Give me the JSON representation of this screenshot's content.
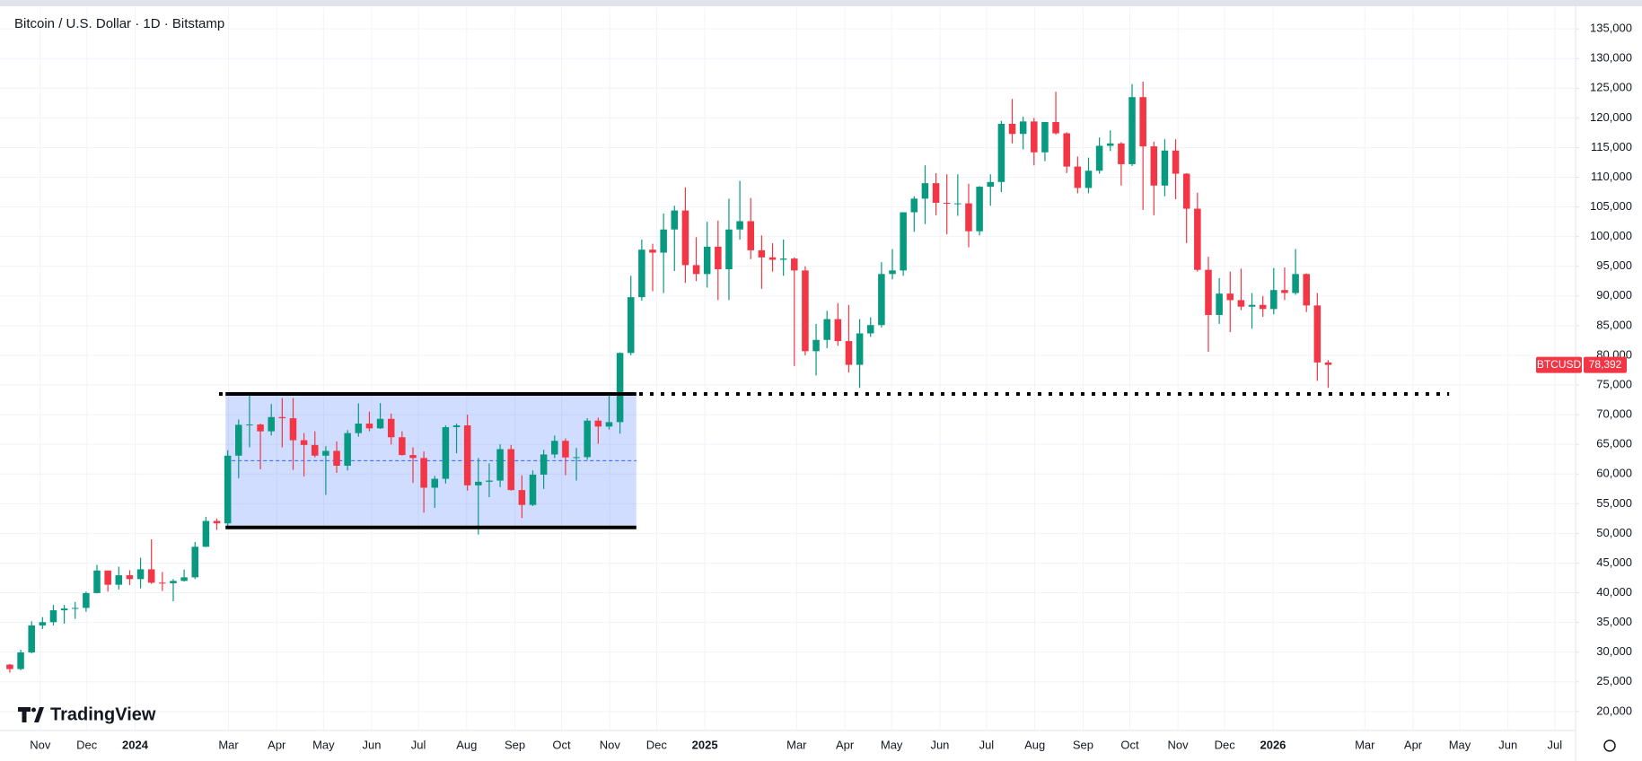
{
  "chart_data": {
    "type": "candlestick",
    "title": "Bitcoin / U.S. Dollar · 1D · Bitstamp",
    "symbol": "BTCUSD",
    "last_price": {
      "value": 78392,
      "label": "78,392"
    },
    "branding": "TradingView",
    "up_color": "#089981",
    "down_color": "#f23645",
    "grid": true,
    "xlim": [
      -0.4,
      144.2
    ],
    "ylim": [
      16800,
      138500
    ],
    "yticks": [
      {
        "value": 20000,
        "label": "20,000"
      },
      {
        "value": 25000,
        "label": "25,000"
      },
      {
        "value": 30000,
        "label": "30,000"
      },
      {
        "value": 35000,
        "label": "35,000"
      },
      {
        "value": 40000,
        "label": "40,000"
      },
      {
        "value": 45000,
        "label": "45,000"
      },
      {
        "value": 50000,
        "label": "50,000"
      },
      {
        "value": 55000,
        "label": "55,000"
      },
      {
        "value": 60000,
        "label": "60,000"
      },
      {
        "value": 65000,
        "label": "65,000"
      },
      {
        "value": 70000,
        "label": "70,000"
      },
      {
        "value": 75000,
        "label": "75,000"
      },
      {
        "value": 80000,
        "label": "80,000"
      },
      {
        "value": 85000,
        "label": "85,000"
      },
      {
        "value": 90000,
        "label": "90,000"
      },
      {
        "value": 95000,
        "label": "95,000"
      },
      {
        "value": 100000,
        "label": "100,000"
      },
      {
        "value": 105000,
        "label": "105,000"
      },
      {
        "value": 110000,
        "label": "110,000"
      },
      {
        "value": 115000,
        "label": "115,000"
      },
      {
        "value": 120000,
        "label": "120,000"
      },
      {
        "value": 125000,
        "label": "125,000"
      },
      {
        "value": 130000,
        "label": "130,000"
      },
      {
        "value": 135000,
        "label": "135,000"
      }
    ],
    "xticks": [
      {
        "value": 3.29,
        "label": "Nov"
      },
      {
        "value": 7.57,
        "label": "Dec"
      },
      {
        "value": 12.0,
        "label": "2024"
      },
      {
        "value": 20.57,
        "label": "Mar"
      },
      {
        "value": 25.0,
        "label": "Apr"
      },
      {
        "value": 29.29,
        "label": "May"
      },
      {
        "value": 33.71,
        "label": "Jun"
      },
      {
        "value": 38.0,
        "label": "Jul"
      },
      {
        "value": 42.43,
        "label": "Aug"
      },
      {
        "value": 46.86,
        "label": "Sep"
      },
      {
        "value": 51.14,
        "label": "Oct"
      },
      {
        "value": 55.57,
        "label": "Nov"
      },
      {
        "value": 59.86,
        "label": "Dec"
      },
      {
        "value": 64.29,
        "label": "2025"
      },
      {
        "value": 72.71,
        "label": "Mar"
      },
      {
        "value": 77.14,
        "label": "Apr"
      },
      {
        "value": 81.43,
        "label": "May"
      },
      {
        "value": 85.86,
        "label": "Jun"
      },
      {
        "value": 90.14,
        "label": "Jul"
      },
      {
        "value": 94.57,
        "label": "Aug"
      },
      {
        "value": 99.0,
        "label": "Sep"
      },
      {
        "value": 103.29,
        "label": "Oct"
      },
      {
        "value": 107.71,
        "label": "Nov"
      },
      {
        "value": 112.0,
        "label": "Dec"
      },
      {
        "value": 116.43,
        "label": "2026"
      },
      {
        "value": 124.86,
        "label": "Mar"
      },
      {
        "value": 129.29,
        "label": "Apr"
      },
      {
        "value": 133.57,
        "label": "May"
      },
      {
        "value": 138.0,
        "label": "Jun"
      },
      {
        "value": 142.29,
        "label": "Jul"
      }
    ],
    "range_box": {
      "x": [
        20.3,
        58.0
      ],
      "low": 51000,
      "high": 73500
    },
    "resistance": {
      "x": [
        19.7,
        132.6
      ],
      "value": 73500
    },
    "ohlc": [
      [
        27900,
        28000,
        26550,
        27150
      ],
      [
        27150,
        30400,
        26950,
        29950
      ],
      [
        29950,
        35200,
        29800,
        34500
      ],
      [
        34500,
        35900,
        33900,
        35050
      ],
      [
        35050,
        37950,
        34500,
        37050
      ],
      [
        37050,
        37950,
        34800,
        37350
      ],
      [
        37350,
        38450,
        35600,
        37450
      ],
      [
        37450,
        40200,
        36800,
        39950
      ],
      [
        39950,
        44700,
        39900,
        43750
      ],
      [
        43750,
        43750,
        40200,
        41350
      ],
      [
        41350,
        44400,
        40550,
        42950
      ],
      [
        42950,
        43800,
        41300,
        42300
      ],
      [
        42300,
        45900,
        40750,
        43950
      ],
      [
        43950,
        49000,
        41500,
        41700
      ],
      [
        41700,
        43500,
        40300,
        41600
      ],
      [
        41600,
        42300,
        38550,
        42000
      ],
      [
        42000,
        43900,
        41900,
        42600
      ],
      [
        42600,
        48550,
        42300,
        47750
      ],
      [
        47750,
        52800,
        47700,
        52100
      ],
      [
        52100,
        52500,
        50600,
        51700
      ],
      [
        51700,
        64000,
        51000,
        63100
      ],
      [
        63100,
        69200,
        59300,
        68300
      ],
      [
        68300,
        73800,
        64500,
        68350
      ],
      [
        68350,
        68500,
        60800,
        67200
      ],
      [
        67200,
        71800,
        66500,
        69600
      ],
      [
        69600,
        72800,
        64500,
        69400
      ],
      [
        69400,
        72800,
        60700,
        65700
      ],
      [
        65700,
        66900,
        59600,
        64900
      ],
      [
        64900,
        67200,
        62800,
        63100
      ],
      [
        63100,
        64700,
        56500,
        63900
      ],
      [
        63900,
        65500,
        60200,
        61400
      ],
      [
        61400,
        67400,
        60600,
        66900
      ],
      [
        66900,
        71900,
        66300,
        68500
      ],
      [
        68500,
        70500,
        67200,
        67700
      ],
      [
        67700,
        71950,
        67600,
        69300
      ],
      [
        69300,
        70200,
        65000,
        66200
      ],
      [
        66200,
        67200,
        63100,
        63200
      ],
      [
        63200,
        64500,
        58500,
        62700
      ],
      [
        62700,
        63800,
        53500,
        57700
      ],
      [
        57700,
        59700,
        54300,
        59200
      ],
      [
        59200,
        68200,
        58400,
        67900
      ],
      [
        67900,
        68500,
        63500,
        68200
      ],
      [
        68200,
        70000,
        57200,
        58100
      ],
      [
        58100,
        62700,
        49800,
        58700
      ],
      [
        58700,
        61800,
        56100,
        58900
      ],
      [
        58900,
        65000,
        57800,
        64200
      ],
      [
        64200,
        64900,
        57200,
        57300
      ],
      [
        57300,
        59800,
        52600,
        54800
      ],
      [
        54800,
        60600,
        54600,
        59900
      ],
      [
        59900,
        64100,
        57500,
        63300
      ],
      [
        63300,
        66500,
        62700,
        65600
      ],
      [
        65600,
        66000,
        59800,
        62800
      ],
      [
        62800,
        64400,
        58900,
        62850
      ],
      [
        62850,
        69400,
        62400,
        69000
      ],
      [
        69000,
        69500,
        65100,
        68000
      ],
      [
        68000,
        73600,
        67500,
        68750
      ],
      [
        68750,
        80500,
        66800,
        80400
      ],
      [
        80400,
        93400,
        80000,
        89800
      ],
      [
        89800,
        99500,
        89200,
        97800
      ],
      [
        97800,
        98800,
        90800,
        97300
      ],
      [
        97300,
        103900,
        90500,
        101200
      ],
      [
        101200,
        105200,
        94200,
        104400
      ],
      [
        104400,
        108300,
        92200,
        95200
      ],
      [
        95200,
        99900,
        92500,
        93700
      ],
      [
        93700,
        102500,
        91400,
        98300
      ],
      [
        98300,
        102700,
        89300,
        94500
      ],
      [
        94500,
        106400,
        89300,
        101200
      ],
      [
        101200,
        109400,
        99500,
        102600
      ],
      [
        102600,
        106500,
        96200,
        97700
      ],
      [
        97700,
        100200,
        91200,
        96500
      ],
      [
        96500,
        98900,
        94100,
        96100
      ],
      [
        96100,
        99500,
        93400,
        96300
      ],
      [
        96300,
        96500,
        78200,
        94300
      ],
      [
        94300,
        95000,
        80000,
        80700
      ],
      [
        80700,
        85300,
        76600,
        82600
      ],
      [
        82600,
        87500,
        81200,
        86100
      ],
      [
        86100,
        88800,
        81600,
        82400
      ],
      [
        82400,
        88500,
        77100,
        78400
      ],
      [
        78400,
        86100,
        74500,
        83700
      ],
      [
        83700,
        86400,
        83100,
        85100
      ],
      [
        85100,
        95700,
        84700,
        93700
      ],
      [
        93700,
        97900,
        92800,
        94300
      ],
      [
        94300,
        104100,
        93400,
        104100
      ],
      [
        104100,
        106800,
        100800,
        106400
      ],
      [
        106400,
        112000,
        102100,
        109000
      ],
      [
        109000,
        110700,
        103600,
        105700
      ],
      [
        105700,
        110500,
        100400,
        105600
      ],
      [
        105600,
        110500,
        103500,
        105600
      ],
      [
        105600,
        108900,
        98200,
        100900
      ],
      [
        100900,
        108500,
        100200,
        108400
      ],
      [
        108400,
        110500,
        105200,
        109200
      ],
      [
        109200,
        119500,
        107500,
        119000
      ],
      [
        119000,
        123200,
        115700,
        117300
      ],
      [
        117300,
        120200,
        114700,
        119400
      ],
      [
        119400,
        120000,
        112000,
        114200
      ],
      [
        114200,
        119300,
        112700,
        119300
      ],
      [
        119300,
        124400,
        117200,
        117400
      ],
      [
        117400,
        117600,
        110700,
        111800
      ],
      [
        111800,
        113500,
        107300,
        108200
      ],
      [
        108200,
        113300,
        107300,
        111100
      ],
      [
        111100,
        116700,
        110600,
        115300
      ],
      [
        115300,
        117900,
        114400,
        115700
      ],
      [
        115700,
        115900,
        108600,
        112200
      ],
      [
        112200,
        125700,
        111900,
        123500
      ],
      [
        123500,
        126100,
        104500,
        115200
      ],
      [
        115200,
        116000,
        103600,
        108600
      ],
      [
        108600,
        116400,
        106800,
        114500
      ],
      [
        114500,
        116400,
        106300,
        110600
      ],
      [
        110600,
        110700,
        98900,
        104700
      ],
      [
        104700,
        107400,
        94100,
        94400
      ],
      [
        94400,
        96600,
        80600,
        86800
      ],
      [
        86800,
        93000,
        85300,
        90400
      ],
      [
        90400,
        94100,
        83900,
        89300
      ],
      [
        89300,
        94600,
        87600,
        88200
      ],
      [
        88200,
        90500,
        84500,
        88500
      ],
      [
        88500,
        90000,
        86500,
        87800
      ],
      [
        87800,
        94700,
        86900,
        91000
      ],
      [
        91000,
        94800,
        89300,
        90500
      ],
      [
        90500,
        97900,
        90200,
        93700
      ],
      [
        93700,
        93800,
        87300,
        88400
      ],
      [
        88400,
        90500,
        75700,
        78800
      ],
      [
        78800,
        79200,
        74500,
        78392
      ]
    ]
  }
}
